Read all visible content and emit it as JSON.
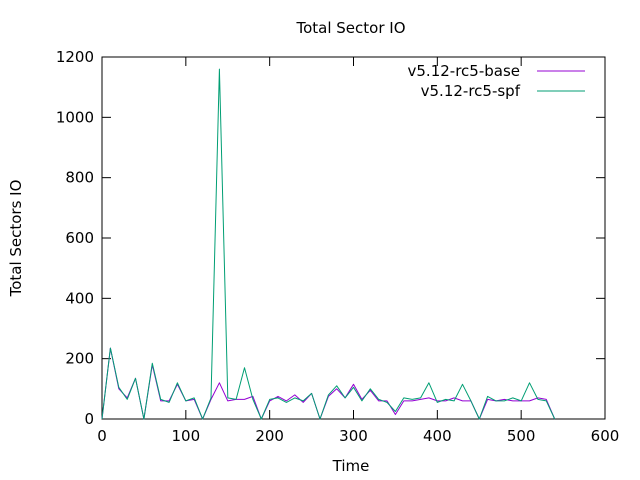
{
  "chart_data": {
    "type": "line",
    "title": "Total Sector IO",
    "xlabel": "Time",
    "ylabel": "Total Sectors IO",
    "xlim": [
      0,
      600
    ],
    "ylim": [
      0,
      1200
    ],
    "xticks": [
      0,
      100,
      200,
      300,
      400,
      500,
      600
    ],
    "yticks": [
      0,
      200,
      400,
      600,
      800,
      1000,
      1200
    ],
    "grid": false,
    "legend_position": "top-right",
    "series": [
      {
        "name": "v5.12-rc5-base",
        "color": "#9400d3",
        "x": [
          0,
          10,
          20,
          30,
          40,
          50,
          60,
          70,
          80,
          90,
          100,
          110,
          120,
          130,
          140,
          150,
          160,
          170,
          180,
          190,
          200,
          210,
          220,
          230,
          240,
          250,
          260,
          270,
          280,
          290,
          300,
          310,
          320,
          330,
          340,
          350,
          360,
          370,
          380,
          390,
          400,
          410,
          420,
          430,
          440,
          450,
          460,
          470,
          480,
          490,
          500,
          510,
          520,
          530,
          540
        ],
        "values": [
          0,
          235,
          100,
          70,
          135,
          0,
          180,
          60,
          60,
          115,
          60,
          65,
          0,
          65,
          120,
          60,
          65,
          65,
          75,
          0,
          60,
          75,
          60,
          80,
          55,
          85,
          0,
          75,
          100,
          70,
          115,
          65,
          95,
          60,
          60,
          15,
          60,
          60,
          65,
          70,
          60,
          60,
          70,
          60,
          60,
          0,
          65,
          60,
          65,
          60,
          60,
          60,
          70,
          65,
          0
        ]
      },
      {
        "name": "v5.12-rc5-spf",
        "color": "#009e73",
        "x": [
          0,
          10,
          20,
          30,
          40,
          50,
          60,
          70,
          80,
          90,
          100,
          110,
          120,
          130,
          140,
          150,
          160,
          170,
          180,
          190,
          200,
          210,
          220,
          230,
          240,
          250,
          260,
          270,
          280,
          290,
          300,
          310,
          320,
          330,
          340,
          350,
          360,
          370,
          380,
          390,
          400,
          410,
          420,
          430,
          440,
          450,
          460,
          470,
          480,
          490,
          500,
          510,
          520,
          530,
          540
        ],
        "values": [
          0,
          235,
          105,
          65,
          135,
          0,
          185,
          65,
          55,
          120,
          60,
          70,
          0,
          70,
          1160,
          70,
          65,
          170,
          65,
          0,
          65,
          70,
          55,
          70,
          60,
          85,
          0,
          80,
          110,
          70,
          105,
          60,
          100,
          65,
          55,
          25,
          70,
          65,
          70,
          120,
          55,
          65,
          60,
          115,
          60,
          0,
          75,
          60,
          60,
          70,
          60,
          120,
          65,
          60,
          0
        ]
      }
    ]
  }
}
